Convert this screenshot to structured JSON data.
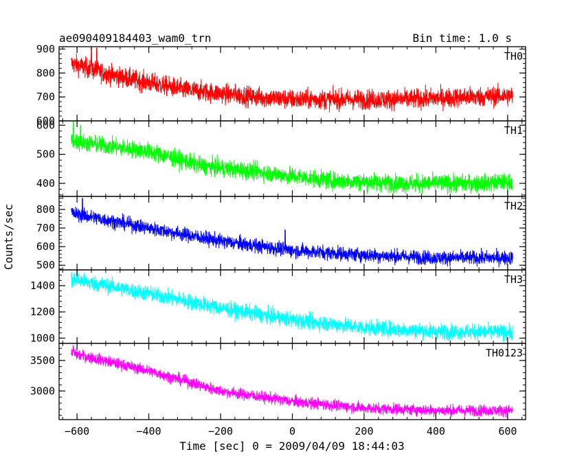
{
  "chart_data": {
    "type": "line",
    "title": "ae090409184403_wam0_trn",
    "subtitle": "Bin time: 1.0 s",
    "xlabel": "Time [sec] 0 = 2009/04/09 18:44:03",
    "ylabel": "Counts/sec",
    "xlim": [
      -650,
      650
    ],
    "xticks": [
      -600,
      -400,
      -200,
      0,
      200,
      400,
      600
    ],
    "x_range": [
      -616,
      614
    ],
    "grid": false,
    "panels": [
      {
        "name": "TH0",
        "color": "#ff0000",
        "ylim": [
          600,
          910
        ],
        "yticks": [
          600,
          700,
          800,
          900
        ],
        "trend": [
          [
            -616,
            840
          ],
          [
            -500,
            790
          ],
          [
            -300,
            730
          ],
          [
            -100,
            700
          ],
          [
            0,
            690
          ],
          [
            100,
            690
          ],
          [
            300,
            690
          ],
          [
            500,
            700
          ],
          [
            614,
            705
          ]
        ],
        "noise": 38,
        "spikes": [
          [
            -560,
            920
          ],
          [
            -545,
            905
          ]
        ]
      },
      {
        "name": "TH1",
        "color": "#00ff00",
        "ylim": [
          355,
          615
        ],
        "yticks": [
          400,
          500,
          600
        ],
        "trend": [
          [
            -616,
            545
          ],
          [
            -400,
            510
          ],
          [
            -250,
            460
          ],
          [
            -100,
            440
          ],
          [
            100,
            410
          ],
          [
            300,
            400
          ],
          [
            500,
            400
          ],
          [
            614,
            405
          ]
        ],
        "noise": 28,
        "spikes": [
          [
            -610,
            625
          ],
          [
            -590,
            600
          ]
        ]
      },
      {
        "name": "TH2",
        "color": "#0000ff",
        "ylim": [
          475,
          870
        ],
        "yticks": [
          500,
          600,
          700,
          800
        ],
        "trend": [
          [
            -616,
            780
          ],
          [
            -400,
            700
          ],
          [
            -200,
            630
          ],
          [
            0,
            580
          ],
          [
            200,
            555
          ],
          [
            400,
            540
          ],
          [
            614,
            540
          ]
        ],
        "noise": 35,
        "spikes": [
          [
            -585,
            860
          ],
          [
            -20,
            690
          ]
        ]
      },
      {
        "name": "TH3",
        "color": "#00ffff",
        "ylim": [
          960,
          1520
        ],
        "yticks": [
          1000,
          1200,
          1400
        ],
        "trend": [
          [
            -616,
            1450
          ],
          [
            -400,
            1340
          ],
          [
            -200,
            1230
          ],
          [
            0,
            1140
          ],
          [
            200,
            1080
          ],
          [
            400,
            1050
          ],
          [
            614,
            1045
          ]
        ],
        "noise": 55,
        "spikes": [
          [
            -600,
            1510
          ]
        ]
      },
      {
        "name": "TH0123",
        "color": "#ff00ff",
        "ylim": [
          2530,
          3780
        ],
        "yticks": [
          3000,
          3500
        ],
        "trend": [
          [
            -616,
            3620
          ],
          [
            -400,
            3330
          ],
          [
            -200,
            3000
          ],
          [
            0,
            2830
          ],
          [
            200,
            2720
          ],
          [
            400,
            2680
          ],
          [
            614,
            2680
          ]
        ],
        "noise": 85,
        "spikes": [
          [
            -610,
            3740
          ]
        ]
      }
    ]
  }
}
